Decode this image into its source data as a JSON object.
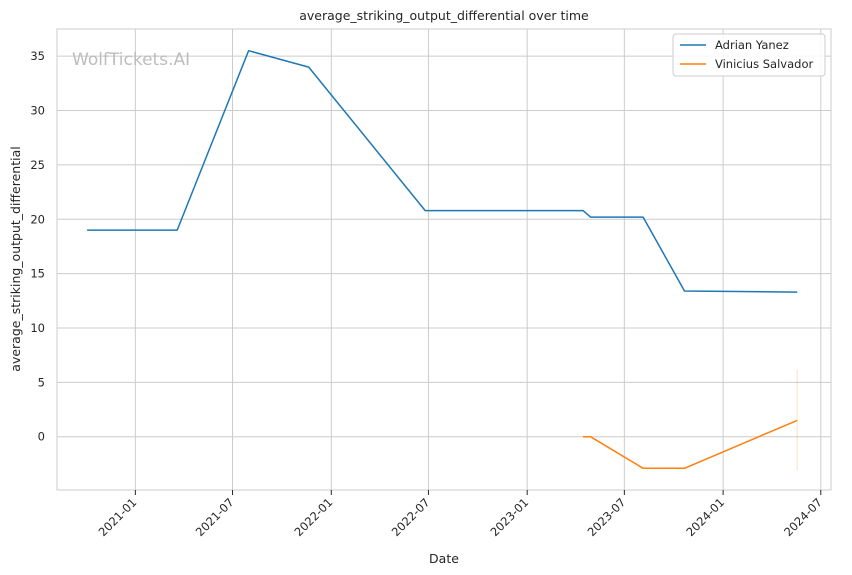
{
  "chart_data": {
    "type": "line",
    "title": "average_striking_output_differential over time",
    "xlabel": "Date",
    "ylabel": "average_striking_output_differential",
    "watermark": "WolfTickets.AI",
    "x_ticks": [
      "2021-01",
      "2021-07",
      "2022-01",
      "2022-07",
      "2023-01",
      "2023-07",
      "2024-01",
      "2024-07"
    ],
    "y_ticks": [
      0,
      5,
      10,
      15,
      20,
      25,
      30,
      35
    ],
    "xlim": [
      "2020-08-08",
      "2024-07-20"
    ],
    "ylim": [
      -4.9,
      37.5
    ],
    "grid": true,
    "legend_position": "top-right",
    "series": [
      {
        "name": "Adrian Yanez",
        "color": "#1f77b4",
        "points": [
          {
            "x": "2020-10-03",
            "y": 19.0
          },
          {
            "x": "2021-03-20",
            "y": 19.0
          },
          {
            "x": "2021-07-31",
            "y": 35.5
          },
          {
            "x": "2021-11-20",
            "y": 34.0
          },
          {
            "x": "2022-06-25",
            "y": 20.8
          },
          {
            "x": "2023-04-15",
            "y": 20.8
          },
          {
            "x": "2023-04-29",
            "y": 20.2
          },
          {
            "x": "2023-08-05",
            "y": 20.2
          },
          {
            "x": "2023-10-21",
            "y": 13.4
          },
          {
            "x": "2024-05-18",
            "y": 13.3
          }
        ]
      },
      {
        "name": "Vinicius Salvador",
        "color": "#ff7f0e",
        "points": [
          {
            "x": "2023-04-15",
            "y": 0.0
          },
          {
            "x": "2023-04-29",
            "y": 0.0
          },
          {
            "x": "2023-08-05",
            "y": -2.9
          },
          {
            "x": "2023-10-21",
            "y": -2.9
          },
          {
            "x": "2024-05-18",
            "y": 1.5
          }
        ]
      }
    ]
  }
}
